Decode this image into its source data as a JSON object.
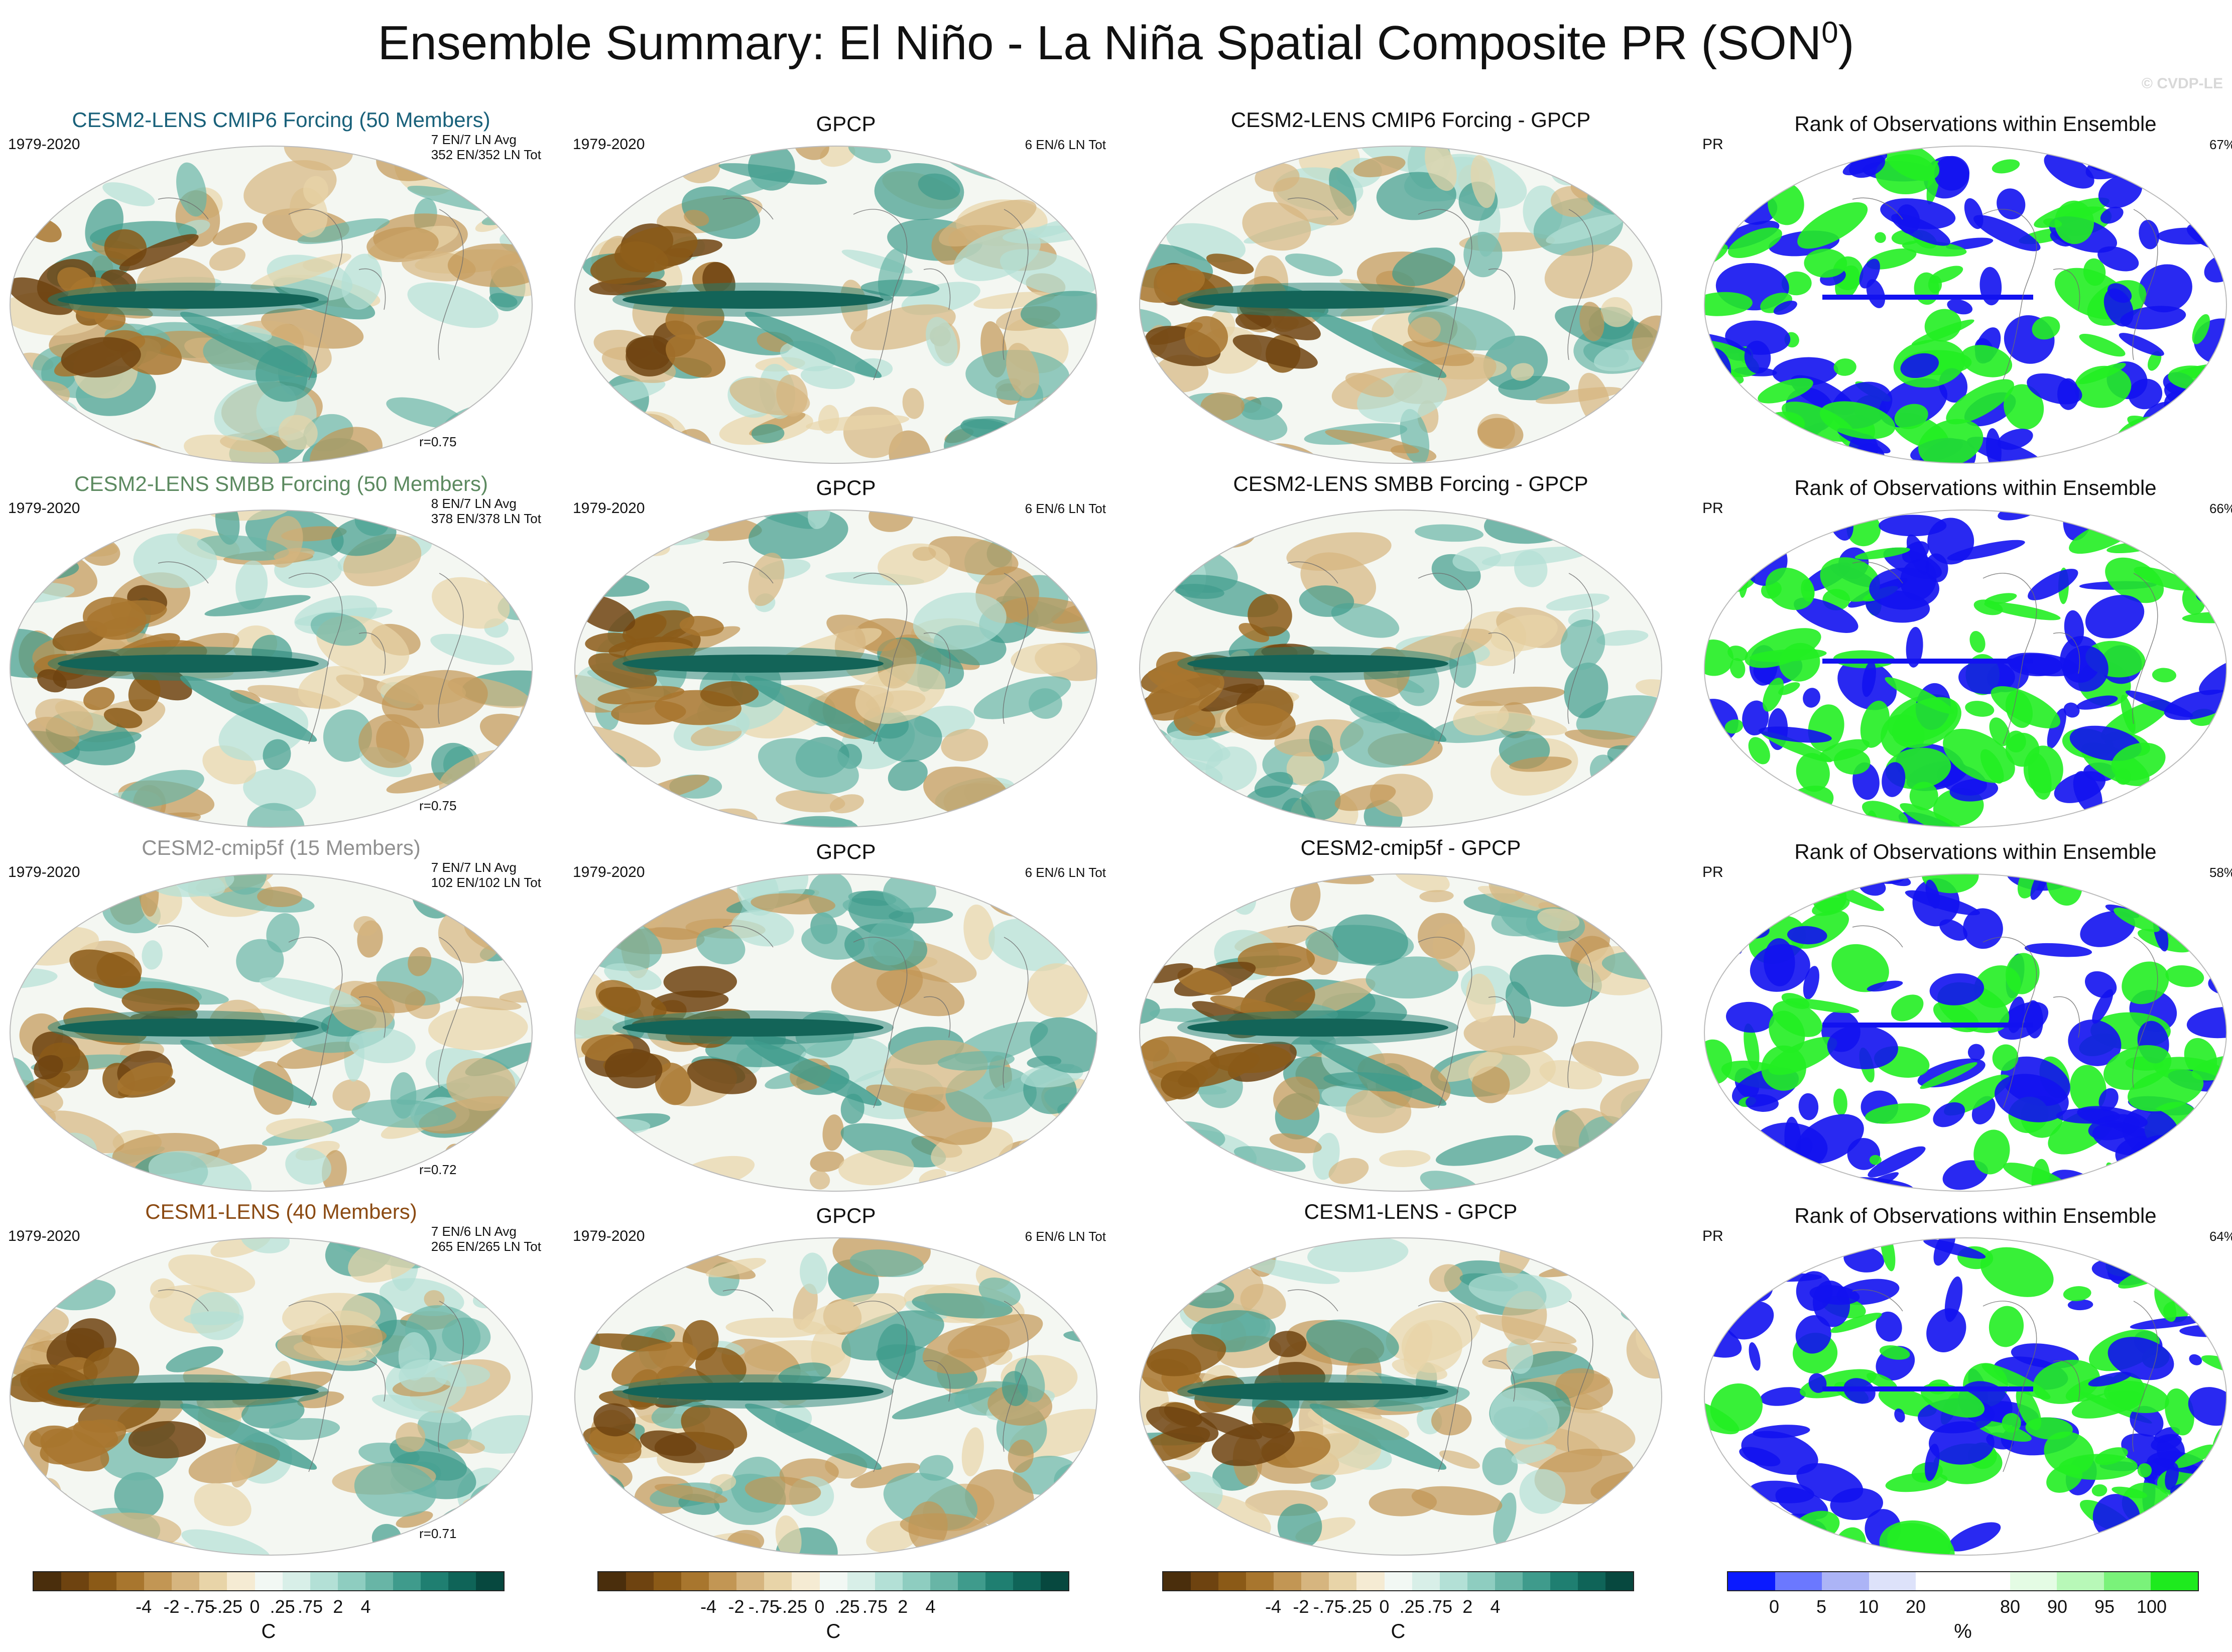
{
  "title": {
    "main": "Ensemble Summary: El Niño - La Niña Spatial Composite PR (SON",
    "sup": "0",
    "close": ")"
  },
  "copyright": "© CVDP-LE",
  "rows": [
    {
      "model": {
        "title": "CESM2-LENS CMIP6 Forcing (50 Members)",
        "color": "#19617a",
        "period": "1979-2020",
        "info1": "7 EN/7 LN Avg",
        "info2": "352 EN/352 LN Tot",
        "corr": "r=0.75"
      },
      "obs": {
        "title": "GPCP",
        "period": "1979-2020",
        "info": "6 EN/6 LN Tot"
      },
      "diff": {
        "title": "CESM2-LENS CMIP6 Forcing - GPCP"
      },
      "rank": {
        "title": "Rank of Observations within Ensemble",
        "var": "PR",
        "pct": "67%"
      }
    },
    {
      "model": {
        "title": "CESM2-LENS SMBB Forcing (50 Members)",
        "color": "#5c8a60",
        "period": "1979-2020",
        "info1": "8 EN/7 LN Avg",
        "info2": "378 EN/378 LN Tot",
        "corr": "r=0.75"
      },
      "obs": {
        "title": "GPCP",
        "period": "1979-2020",
        "info": "6 EN/6 LN Tot"
      },
      "diff": {
        "title": "CESM2-LENS SMBB Forcing - GPCP"
      },
      "rank": {
        "title": "Rank of Observations within Ensemble",
        "var": "PR",
        "pct": "66%"
      }
    },
    {
      "model": {
        "title": "CESM2-cmip5f (15 Members)",
        "color": "#909090",
        "period": "1979-2020",
        "info1": "7 EN/7 LN Avg",
        "info2": "102 EN/102 LN Tot",
        "corr": "r=0.72"
      },
      "obs": {
        "title": "GPCP",
        "period": "1979-2020",
        "info": "6 EN/6 LN Tot"
      },
      "diff": {
        "title": "CESM2-cmip5f - GPCP"
      },
      "rank": {
        "title": "Rank of Observations within Ensemble",
        "var": "PR",
        "pct": "58%"
      }
    },
    {
      "model": {
        "title": "CESM1-LENS (40 Members)",
        "color": "#8b4a12",
        "period": "1979-2020",
        "info1": "7 EN/6 LN Avg",
        "info2": "265 EN/265 LN Tot",
        "corr": "r=0.71"
      },
      "obs": {
        "title": "GPCP",
        "period": "1979-2020",
        "info": "6 EN/6 LN Tot"
      },
      "diff": {
        "title": "CESM1-LENS - GPCP"
      },
      "rank": {
        "title": "Rank of Observations within Ensemble",
        "var": "PR",
        "pct": "64%"
      }
    }
  ],
  "colorbars": {
    "precip": {
      "colors": [
        "#4a2e0c",
        "#6e4310",
        "#8b5a17",
        "#a8762e",
        "#c29654",
        "#d6b57f",
        "#e8d4a8",
        "#f5ebd3",
        "#f2f8f4",
        "#d8efe8",
        "#b3e0d6",
        "#8ecdc0",
        "#68b5a6",
        "#3f9b8c",
        "#1f7f71",
        "#0f6458",
        "#07483f"
      ],
      "labels": [
        "-4",
        "-2",
        "-.75",
        "-.25",
        "0",
        ".25",
        ".75",
        "2",
        "4"
      ],
      "unit": "C"
    },
    "rank": {
      "colors": [
        "#0a1aff",
        "#6b78ff",
        "#acb4f6",
        "#dde2fa",
        "#ffffff",
        "#ffffff",
        "#e4fce4",
        "#b8f8b8",
        "#7af27a",
        "#1eea1e"
      ],
      "labels": [
        "0",
        "5",
        "10",
        "20",
        "80",
        "90",
        "95",
        "100"
      ],
      "unit": "%"
    }
  }
}
